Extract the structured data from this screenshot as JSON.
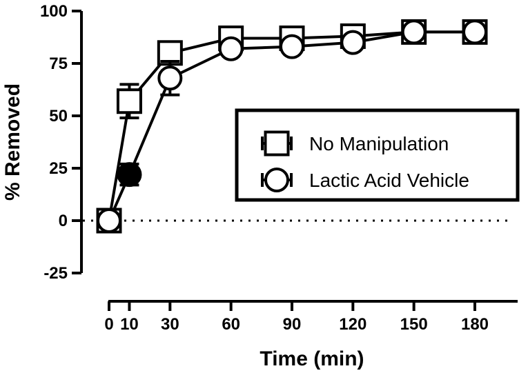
{
  "chart_data": {
    "type": "line",
    "title": "",
    "xlabel": "Time (min)",
    "ylabel": "% Removed",
    "xlim": [
      0,
      180
    ],
    "ylim": [
      -25,
      100
    ],
    "x_ticks": [
      0,
      10,
      30,
      60,
      90,
      120,
      150,
      180
    ],
    "x_tick_labels": [
      "0",
      "10",
      "30",
      "60",
      "90",
      "120",
      "150",
      "180"
    ],
    "y_ticks": [
      -25,
      0,
      25,
      50,
      75,
      100
    ],
    "y_tick_labels": [
      "-25",
      "0",
      "25",
      "50",
      "75",
      "100"
    ],
    "reference_line": {
      "y": 0,
      "style": "dotted"
    },
    "legend_position": "center-right",
    "series": [
      {
        "name": "No Manipulation",
        "marker": "square",
        "color": "#000000",
        "x": [
          0,
          10,
          30,
          60,
          90,
          120,
          150,
          180
        ],
        "y": [
          0,
          57,
          80,
          87,
          87,
          88,
          90,
          90
        ],
        "error": [
          2,
          8,
          4,
          2,
          2,
          2,
          2,
          2
        ]
      },
      {
        "name": "Lactic Acid Vehicle",
        "marker": "circle",
        "color": "#000000",
        "x": [
          0,
          10,
          30,
          60,
          90,
          120,
          150,
          180
        ],
        "y": [
          0,
          22,
          68,
          82,
          83,
          85,
          90,
          90
        ],
        "error": [
          2,
          5,
          8,
          3,
          3,
          3,
          2,
          2
        ],
        "filled_points": [
          1
        ]
      }
    ]
  }
}
